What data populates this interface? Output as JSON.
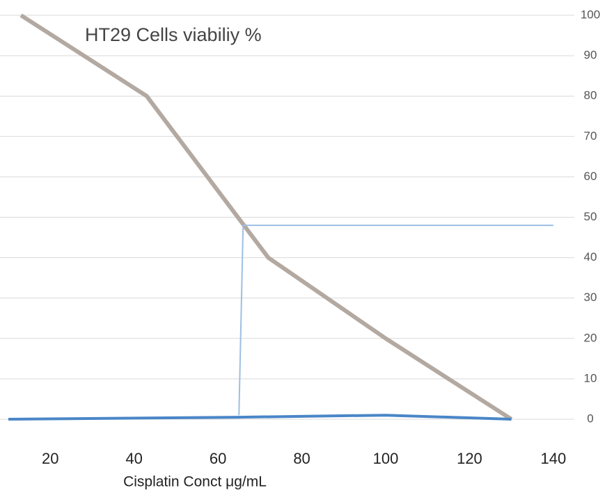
{
  "chart_data": {
    "type": "line",
    "title": "HT29  Cells viabiliy %",
    "x_label": "Cisplatin Conct  μg/mL",
    "xlim": [
      10,
      145
    ],
    "xticks": [
      20,
      40,
      60,
      80,
      100,
      120,
      140
    ],
    "ylim": [
      0,
      100
    ],
    "yticks": [
      0,
      10,
      20,
      30,
      40,
      50,
      60,
      70,
      80,
      90,
      100
    ],
    "grid": true,
    "series": [
      {
        "color": "#b3a9a1",
        "width": 6,
        "x": [
          13,
          43,
          72,
          100,
          130
        ],
        "values": [
          100,
          80,
          40,
          20,
          0
        ]
      },
      {
        "color": "#9dbfe3",
        "width": 2,
        "x": [
          65,
          66,
          140
        ],
        "values": [
          1,
          48,
          48
        ]
      },
      {
        "color": "#4a86c8",
        "width": 4,
        "x": [
          10,
          65,
          100,
          130
        ],
        "values": [
          0,
          0.5,
          1,
          0
        ]
      }
    ]
  }
}
